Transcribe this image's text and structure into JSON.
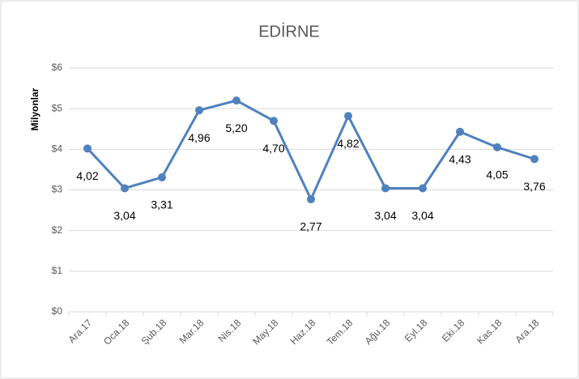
{
  "chart_data": {
    "type": "line",
    "title": "EDİRNE",
    "y_label": "Milyonlar",
    "categories": [
      "Ara.17",
      "Oca.18",
      "Şub.18",
      "Mar.18",
      "Nis.18",
      "May.18",
      "Haz.18",
      "Tem.18",
      "Ağu.18",
      "Eyl.18",
      "Eki.18",
      "Kas.18",
      "Ara.18"
    ],
    "series": [
      {
        "name": "EDİRNE",
        "color": "#4f81bd",
        "values": [
          4.02,
          3.04,
          3.31,
          4.96,
          5.2,
          4.7,
          2.77,
          4.82,
          3.04,
          3.04,
          4.43,
          4.05,
          3.76
        ],
        "value_labels": [
          "4,02",
          "3,04",
          "3,31",
          "4,96",
          "5,20",
          "4,70",
          "2,77",
          "4,82",
          "3,04",
          "3,04",
          "4,43",
          "4,05",
          "3,76"
        ]
      }
    ],
    "ylim": [
      0,
      6
    ],
    "yticks": [
      {
        "value": 0,
        "label": "$0"
      },
      {
        "value": 1,
        "label": "$1"
      },
      {
        "value": 2,
        "label": "$2"
      },
      {
        "value": 3,
        "label": "$3"
      },
      {
        "value": 4,
        "label": "$4"
      },
      {
        "value": 5,
        "label": "$5"
      },
      {
        "value": 6,
        "label": "$6"
      }
    ],
    "grid": true
  }
}
